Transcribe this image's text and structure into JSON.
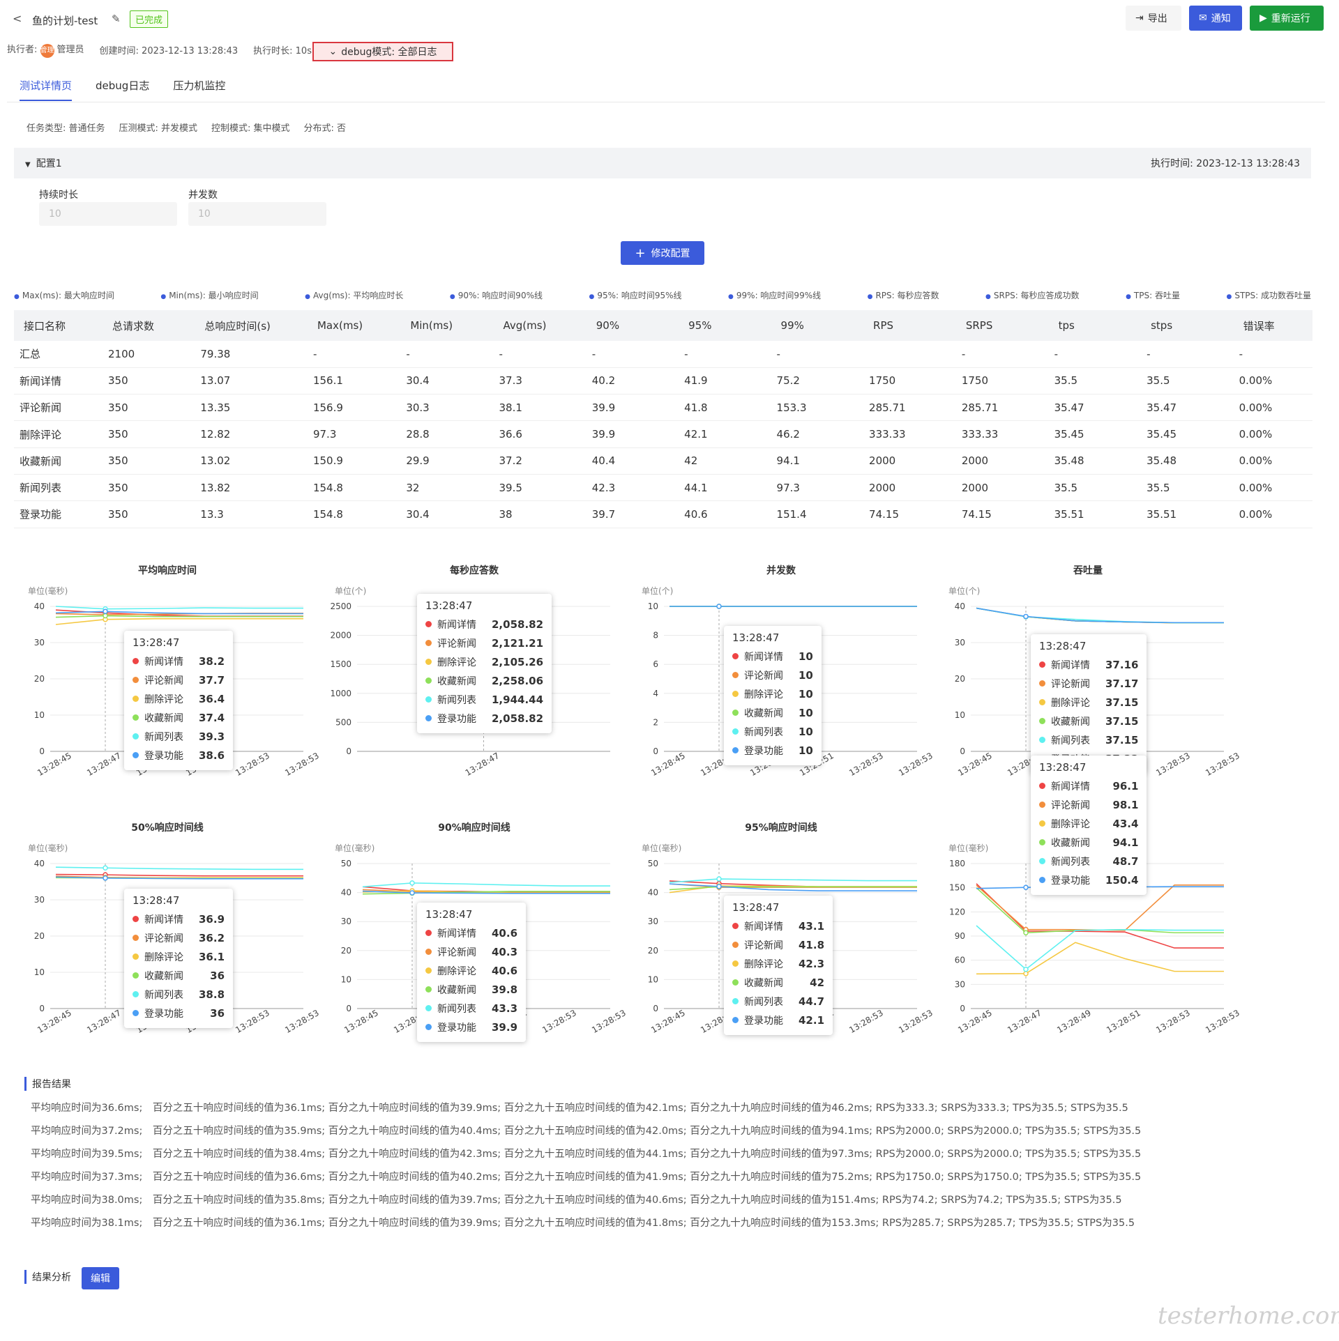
{
  "header": {
    "back": "<",
    "title": "鱼的计划-test",
    "status": "已完成",
    "export": "导出",
    "notify": "通知",
    "rerun": "重新运行"
  },
  "meta": {
    "executor_label": "执行者:",
    "executor_avatar": "管理",
    "executor": "管理员",
    "created": "创建时间: 2023-12-13 13:28:43",
    "duration": "执行时长: 10s",
    "debug": "debug模式: 全部日志"
  },
  "tabs": [
    "测试详情页",
    "debug日志",
    "压力机监控"
  ],
  "info": [
    "任务类型: 普通任务",
    "压测模式: 并发模式",
    "控制模式: 集中模式",
    "分布式: 否"
  ],
  "config": {
    "name": "配置1",
    "exec_time": "执行时间: 2023-12-13 13:28:43",
    "duration_label": "持续时长",
    "duration_value": "10",
    "concurrency_label": "并发数",
    "concurrency_value": "10",
    "modify": "修改配置"
  },
  "legend": [
    "Max(ms): 最大响应时间",
    "Min(ms): 最小响应时间",
    "Avg(ms): 平均响应时长",
    "90%: 响应时间90%线",
    "95%: 响应时间95%线",
    "99%: 响应时间99%线",
    "RPS: 每秒应答数",
    "SRPS: 每秒应答成功数",
    "TPS: 吞吐量",
    "STPS: 成功数吞吐量"
  ],
  "table": {
    "headers": [
      "接口名称",
      "总请求数",
      "总响应时间(s)",
      "Max(ms)",
      "Min(ms)",
      "Avg(ms)",
      "90%",
      "95%",
      "99%",
      "RPS",
      "SRPS",
      "tps",
      "stps",
      "错误率"
    ],
    "rows": [
      [
        "汇总",
        "2100",
        "79.38",
        "-",
        "-",
        "-",
        "-",
        "-",
        "-",
        "",
        "-",
        "-",
        "-",
        "-"
      ],
      [
        "新闻详情",
        "350",
        "13.07",
        "156.1",
        "30.4",
        "37.3",
        "40.2",
        "41.9",
        "75.2",
        "1750",
        "1750",
        "35.5",
        "35.5",
        "0.00%"
      ],
      [
        "评论新闻",
        "350",
        "13.35",
        "156.9",
        "30.3",
        "38.1",
        "39.9",
        "41.8",
        "153.3",
        "285.71",
        "285.71",
        "35.47",
        "35.47",
        "0.00%"
      ],
      [
        "删除评论",
        "350",
        "12.82",
        "97.3",
        "28.8",
        "36.6",
        "39.9",
        "42.1",
        "46.2",
        "333.33",
        "333.33",
        "35.45",
        "35.45",
        "0.00%"
      ],
      [
        "收藏新闻",
        "350",
        "13.02",
        "150.9",
        "29.9",
        "37.2",
        "40.4",
        "42",
        "94.1",
        "2000",
        "2000",
        "35.48",
        "35.48",
        "0.00%"
      ],
      [
        "新闻列表",
        "350",
        "13.82",
        "154.8",
        "32",
        "39.5",
        "42.3",
        "44.1",
        "97.3",
        "2000",
        "2000",
        "35.5",
        "35.5",
        "0.00%"
      ],
      [
        "登录功能",
        "350",
        "13.3",
        "154.8",
        "30.4",
        "38",
        "39.7",
        "40.6",
        "151.4",
        "74.15",
        "74.15",
        "35.51",
        "35.51",
        "0.00%"
      ]
    ]
  },
  "colors": [
    "#ee4444",
    "#f28e3c",
    "#f5c842",
    "#8ee05a",
    "#5ef0f0",
    "#4a9ff5"
  ],
  "chart_data": [
    {
      "type": "line",
      "title": "平均响应时间",
      "ylabel": "单位(毫秒)",
      "ylim": [
        0,
        40
      ],
      "yticks": [
        0,
        10,
        20,
        30,
        40
      ],
      "x": [
        "13:28:45",
        "13:28:47",
        "13:28:49",
        "13:28:51",
        "13:28:53",
        "13:28:53"
      ],
      "series": [
        {
          "name": "新闻详情",
          "values": [
            39,
            38.2,
            37.6,
            37.3,
            37.3,
            37.3
          ]
        },
        {
          "name": "评论新闻",
          "values": [
            38,
            37.7,
            37.8,
            38.0,
            38.1,
            38.1
          ]
        },
        {
          "name": "删除评论",
          "values": [
            35,
            36.4,
            36.6,
            36.6,
            36.6,
            36.6
          ]
        },
        {
          "name": "收藏新闻",
          "values": [
            37,
            37.4,
            37.2,
            37.2,
            37.2,
            37.2
          ]
        },
        {
          "name": "新闻列表",
          "values": [
            40,
            39.3,
            39.4,
            39.6,
            39.5,
            39.5
          ]
        },
        {
          "name": "登录功能",
          "values": [
            38.2,
            38.6,
            38.2,
            38.0,
            38.0,
            38.0
          ]
        }
      ],
      "tooltip": {
        "time": "13:28:47",
        "values": [
          "38.2",
          "37.7",
          "36.4",
          "37.4",
          "39.3",
          "38.6"
        ]
      }
    },
    {
      "type": "line",
      "title": "每秒应答数",
      "ylabel": "单位(个)",
      "ylim": [
        0,
        2500
      ],
      "yticks": [
        0,
        500,
        1000,
        1500,
        2000,
        2500
      ],
      "x": [
        "13:28:47"
      ],
      "series": [
        {
          "name": "新闻详情",
          "values": [
            2058.82
          ]
        },
        {
          "name": "评论新闻",
          "values": [
            2121.21
          ]
        },
        {
          "name": "删除评论",
          "values": [
            2105.26
          ]
        },
        {
          "name": "收藏新闻",
          "values": [
            2258.06
          ]
        },
        {
          "name": "新闻列表",
          "values": [
            1944.44
          ]
        },
        {
          "name": "登录功能",
          "values": [
            2058.82
          ]
        }
      ],
      "tooltip": {
        "time": "13:28:47",
        "values": [
          "2,058.82",
          "2,121.21",
          "2,105.26",
          "2,258.06",
          "1,944.44",
          "2,058.82"
        ]
      }
    },
    {
      "type": "line",
      "title": "并发数",
      "ylabel": "单位(个)",
      "ylim": [
        0,
        10
      ],
      "yticks": [
        0,
        2,
        4,
        6,
        8,
        10
      ],
      "x": [
        "13:28:45",
        "13:28:47",
        "13:28:49",
        "13:28:51",
        "13:28:53",
        "13:28:53"
      ],
      "series": [
        {
          "name": "新闻详情",
          "values": [
            10,
            10,
            10,
            10,
            10,
            10
          ]
        },
        {
          "name": "评论新闻",
          "values": [
            10,
            10,
            10,
            10,
            10,
            10
          ]
        },
        {
          "name": "删除评论",
          "values": [
            10,
            10,
            10,
            10,
            10,
            10
          ]
        },
        {
          "name": "收藏新闻",
          "values": [
            10,
            10,
            10,
            10,
            10,
            10
          ]
        },
        {
          "name": "新闻列表",
          "values": [
            10,
            10,
            10,
            10,
            10,
            10
          ]
        },
        {
          "name": "登录功能",
          "values": [
            10,
            10,
            10,
            10,
            10,
            10
          ]
        }
      ],
      "tooltip": {
        "time": "13:28:47",
        "values": [
          "10",
          "10",
          "10",
          "10",
          "10",
          "10"
        ]
      }
    },
    {
      "type": "line",
      "title": "吞吐量",
      "ylabel": "单位(个)",
      "ylim": [
        0,
        40
      ],
      "yticks": [
        0,
        10,
        20,
        30,
        40
      ],
      "x": [
        "13:28:45",
        "13:28:47",
        "13:28:49",
        "13:28:51",
        "13:28:53",
        "13:28:53"
      ],
      "series": [
        {
          "name": "新闻详情",
          "values": [
            39.5,
            37.16,
            36,
            35.7,
            35.5,
            35.5
          ]
        },
        {
          "name": "评论新闻",
          "values": [
            39.5,
            37.17,
            36,
            35.7,
            35.47,
            35.47
          ]
        },
        {
          "name": "删除评论",
          "values": [
            39.5,
            37.15,
            36,
            35.7,
            35.45,
            35.45
          ]
        },
        {
          "name": "收藏新闻",
          "values": [
            39.5,
            37.15,
            36,
            35.7,
            35.48,
            35.48
          ]
        },
        {
          "name": "新闻列表",
          "values": [
            39.5,
            37.15,
            36.4,
            35.8,
            35.5,
            35.5
          ]
        },
        {
          "name": "登录功能",
          "values": [
            39.5,
            37.22,
            36,
            35.7,
            35.51,
            35.51
          ]
        }
      ],
      "tooltip": {
        "time": "13:28:47",
        "values": [
          "37.16",
          "37.17",
          "37.15",
          "37.15",
          "37.15",
          "37.22"
        ]
      }
    },
    {
      "type": "line",
      "title": "50%响应时间线",
      "ylabel": "单位(毫秒)",
      "ylim": [
        0,
        40
      ],
      "yticks": [
        0,
        10,
        20,
        30,
        40
      ],
      "x": [
        "13:28:45",
        "13:28:47",
        "13:28:49",
        "13:28:51",
        "13:28:53",
        "13:28:53"
      ],
      "series": [
        {
          "name": "新闻详情",
          "values": [
            37,
            36.9,
            36.7,
            36.6,
            36.6,
            36.6
          ]
        },
        {
          "name": "评论新闻",
          "values": [
            36.5,
            36.2,
            36.1,
            36.1,
            36.1,
            36.1
          ]
        },
        {
          "name": "删除评论",
          "values": [
            36.2,
            36.1,
            36.1,
            36.1,
            36.1,
            36.1
          ]
        },
        {
          "name": "收藏新闻",
          "values": [
            36.1,
            36,
            35.9,
            35.9,
            35.9,
            35.9
          ]
        },
        {
          "name": "新闻列表",
          "values": [
            39,
            38.8,
            38.6,
            38.5,
            38.4,
            38.4
          ]
        },
        {
          "name": "登录功能",
          "values": [
            36.3,
            36,
            35.9,
            35.8,
            35.8,
            35.8
          ]
        }
      ],
      "tooltip": {
        "time": "13:28:47",
        "values": [
          "36.9",
          "36.2",
          "36.1",
          "36",
          "38.8",
          "36"
        ]
      }
    },
    {
      "type": "line",
      "title": "90%响应时间线",
      "ylabel": "单位(毫秒)",
      "ylim": [
        0,
        50
      ],
      "yticks": [
        0,
        10,
        20,
        30,
        40,
        50
      ],
      "x": [
        "13:28:45",
        "13:28:47",
        "13:28:49",
        "13:28:51",
        "13:28:53",
        "13:28:53"
      ],
      "series": [
        {
          "name": "新闻详情",
          "values": [
            42,
            40.6,
            40.4,
            40.2,
            40.2,
            40.2
          ]
        },
        {
          "name": "评论新闻",
          "values": [
            41,
            40.3,
            40.1,
            39.9,
            39.9,
            39.9
          ]
        },
        {
          "name": "删除评论",
          "values": [
            40.2,
            40.6,
            40.2,
            39.9,
            39.9,
            39.9
          ]
        },
        {
          "name": "收藏新闻",
          "values": [
            39.5,
            39.8,
            40.2,
            40.4,
            40.4,
            40.4
          ]
        },
        {
          "name": "新闻列表",
          "values": [
            42,
            43.3,
            43,
            42.6,
            42.3,
            42.3
          ]
        },
        {
          "name": "登录功能",
          "values": [
            40.5,
            39.9,
            39.8,
            39.7,
            39.7,
            39.7
          ]
        }
      ],
      "tooltip": {
        "time": "13:28:47",
        "values": [
          "40.6",
          "40.3",
          "40.6",
          "39.8",
          "43.3",
          "39.9"
        ]
      }
    },
    {
      "type": "line",
      "title": "95%响应时间线",
      "ylabel": "单位(毫秒)",
      "ylim": [
        0,
        50
      ],
      "yticks": [
        0,
        10,
        20,
        30,
        40,
        50
      ],
      "x": [
        "13:28:45",
        "13:28:47",
        "13:28:49",
        "13:28:51",
        "13:28:53",
        "13:28:53"
      ],
      "series": [
        {
          "name": "新闻详情",
          "values": [
            44,
            43.1,
            42.5,
            42,
            41.9,
            41.9
          ]
        },
        {
          "name": "评论新闻",
          "values": [
            43,
            41.8,
            41.8,
            41.8,
            41.8,
            41.8
          ]
        },
        {
          "name": "删除评论",
          "values": [
            40,
            42.3,
            42.2,
            42.1,
            42.1,
            42.1
          ]
        },
        {
          "name": "收藏新闻",
          "values": [
            41,
            42,
            42,
            42,
            42,
            42
          ]
        },
        {
          "name": "新闻列表",
          "values": [
            43.5,
            44.7,
            44.5,
            44.3,
            44.1,
            44.1
          ]
        },
        {
          "name": "登录功能",
          "values": [
            43,
            42.1,
            41,
            40.6,
            40.6,
            40.6
          ]
        }
      ],
      "tooltip": {
        "time": "13:28:47",
        "values": [
          "43.1",
          "41.8",
          "42.3",
          "42",
          "44.7",
          "42.1"
        ]
      }
    },
    {
      "type": "line",
      "title": "",
      "ylabel": "单位(毫秒)",
      "ylim": [
        0,
        180
      ],
      "yticks": [
        0,
        30,
        60,
        90,
        120,
        150,
        180
      ],
      "x": [
        "13:28:45",
        "13:28:47",
        "13:28:49",
        "13:28:51",
        "13:28:53",
        "13:28:53"
      ],
      "series": [
        {
          "name": "新闻详情",
          "values": [
            155,
            96.1,
            96,
            95,
            75.2,
            75.2
          ]
        },
        {
          "name": "评论新闻",
          "values": [
            153,
            98.1,
            98,
            97,
            153.3,
            153.3
          ]
        },
        {
          "name": "删除评论",
          "values": [
            43,
            43.4,
            82,
            62,
            46.2,
            46.2
          ]
        },
        {
          "name": "收藏新闻",
          "values": [
            150,
            94.1,
            97,
            98,
            94.1,
            94.1
          ]
        },
        {
          "name": "新闻列表",
          "values": [
            103,
            48.7,
            97,
            98,
            97.3,
            97.3
          ]
        },
        {
          "name": "登录功能",
          "values": [
            149,
            150.4,
            151,
            151,
            151.4,
            151.4
          ]
        }
      ],
      "tooltip": {
        "time": "13:28:47",
        "values": [
          "96.1",
          "98.1",
          "43.4",
          "94.1",
          "48.7",
          "150.4"
        ]
      }
    }
  ],
  "report": {
    "title": "报告结果",
    "lines": [
      "平均响应时间为36.6ms;　百分之五十响应时间线的值为36.1ms; 百分之九十响应时间线的值为39.9ms; 百分之九十五响应时间线的值为42.1ms; 百分之九十九响应时间线的值为46.2ms; RPS为333.3; SRPS为333.3; TPS为35.5; STPS为35.5",
      "平均响应时间为37.2ms;　百分之五十响应时间线的值为35.9ms; 百分之九十响应时间线的值为40.4ms; 百分之九十五响应时间线的值为42.0ms; 百分之九十九响应时间线的值为94.1ms; RPS为2000.0; SRPS为2000.0; TPS为35.5; STPS为35.5",
      "平均响应时间为39.5ms;　百分之五十响应时间线的值为38.4ms; 百分之九十响应时间线的值为42.3ms; 百分之九十五响应时间线的值为44.1ms; 百分之九十九响应时间线的值为97.3ms; RPS为2000.0; SRPS为2000.0; TPS为35.5; STPS为35.5",
      "平均响应时间为37.3ms;　百分之五十响应时间线的值为36.6ms; 百分之九十响应时间线的值为40.2ms; 百分之九十五响应时间线的值为41.9ms; 百分之九十九响应时间线的值为75.2ms; RPS为1750.0; SRPS为1750.0; TPS为35.5; STPS为35.5",
      "平均响应时间为38.0ms;　百分之五十响应时间线的值为35.8ms; 百分之九十响应时间线的值为39.7ms; 百分之九十五响应时间线的值为40.6ms; 百分之九十九响应时间线的值为151.4ms; RPS为74.2; SRPS为74.2; TPS为35.5; STPS为35.5",
      "平均响应时间为38.1ms;　百分之五十响应时间线的值为36.1ms; 百分之九十响应时间线的值为39.9ms; 百分之九十五响应时间线的值为41.8ms; 百分之九十九响应时间线的值为153.3ms; RPS为285.7; SRPS为285.7; TPS为35.5; STPS为35.5"
    ]
  },
  "analysis": {
    "title": "结果分析",
    "edit": "编辑"
  },
  "watermark": "testerhome.com"
}
